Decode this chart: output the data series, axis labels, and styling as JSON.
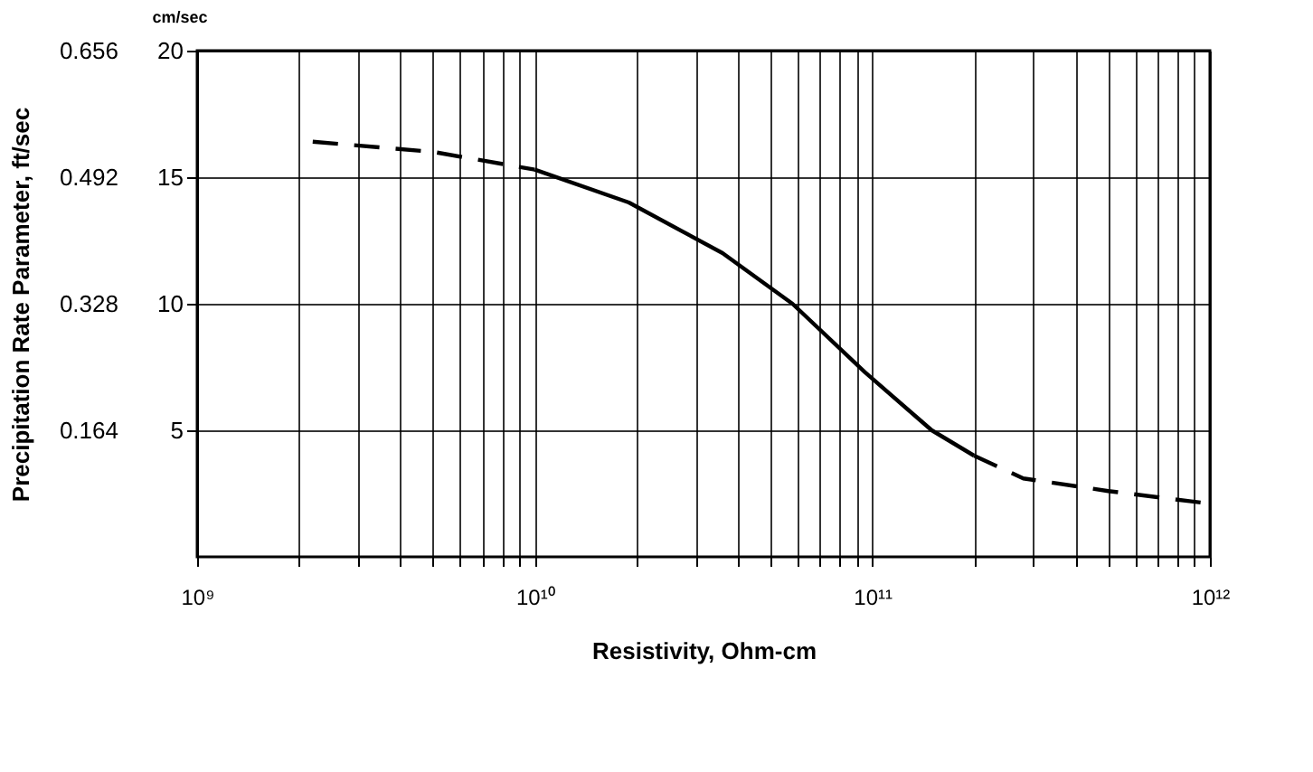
{
  "chart_data": {
    "type": "line",
    "xlabel": "Resistivity, Ohm-cm",
    "ylabel": "cm/sec",
    "y2label": "Precipitation Rate Parameter, ft/sec",
    "xlim": [
      1000000000.0,
      1000000000000.0
    ],
    "xticks": [
      {
        "value": 1000000000.0,
        "label": "10⁹"
      },
      {
        "value": 2000000000.0,
        "label": null
      },
      {
        "value": 3000000000.0,
        "label": null
      },
      {
        "value": 4000000000.0,
        "label": null
      },
      {
        "value": 5000000000.0,
        "label": null
      },
      {
        "value": 6000000000.0,
        "label": null
      },
      {
        "value": 7000000000.0,
        "label": null
      },
      {
        "value": 8000000000.0,
        "label": null
      },
      {
        "value": 9000000000.0,
        "label": null
      },
      {
        "value": 10000000000.0,
        "label": "10¹⁰"
      },
      {
        "value": 20000000000.0,
        "label": null
      },
      {
        "value": 30000000000.0,
        "label": null
      },
      {
        "value": 40000000000.0,
        "label": null
      },
      {
        "value": 50000000000.0,
        "label": null
      },
      {
        "value": 60000000000.0,
        "label": null
      },
      {
        "value": 70000000000.0,
        "label": null
      },
      {
        "value": 80000000000.0,
        "label": null
      },
      {
        "value": 90000000000.0,
        "label": null
      },
      {
        "value": 100000000000.0,
        "label": "10¹¹"
      },
      {
        "value": 200000000000.0,
        "label": null
      },
      {
        "value": 300000000000.0,
        "label": null
      },
      {
        "value": 400000000000.0,
        "label": null
      },
      {
        "value": 500000000000.0,
        "label": null
      },
      {
        "value": 600000000000.0,
        "label": null
      },
      {
        "value": 700000000000.0,
        "label": null
      },
      {
        "value": 800000000000.0,
        "label": null
      },
      {
        "value": 900000000000.0,
        "label": null
      },
      {
        "value": 1000000000000.0,
        "label": "10¹²"
      }
    ],
    "ylim": [
      0,
      20
    ],
    "yticks": [
      5,
      10,
      15,
      20
    ],
    "y2lim": [
      0,
      0.656
    ],
    "y2ticks": [
      0.164,
      0.328,
      0.492,
      0.656
    ],
    "log": "x",
    "grid": true,
    "marker": "none",
    "series": [
      {
        "color": "#000000",
        "line_style": "dashed",
        "x": [
          2200000000.0,
          5000000000.0,
          10000000000.0
        ],
        "values": [
          16.4,
          16.0,
          15.3
        ]
      },
      {
        "color": "#000000",
        "line_style": "solid",
        "x": [
          10000000000.0,
          19000000000.0,
          36000000000.0,
          58000000000.0,
          95000000000.0,
          150000000000.0,
          200000000000.0
        ],
        "values": [
          15.3,
          14.0,
          12.0,
          10.0,
          7.3,
          5.0,
          4.0
        ]
      },
      {
        "color": "#000000",
        "line_style": "dashed",
        "x": [
          200000000000.0,
          280000000000.0,
          500000000000.0,
          870000000000.0,
          1000000000000.0
        ],
        "values": [
          4.0,
          3.1,
          2.6,
          2.2,
          2.1
        ]
      }
    ]
  }
}
